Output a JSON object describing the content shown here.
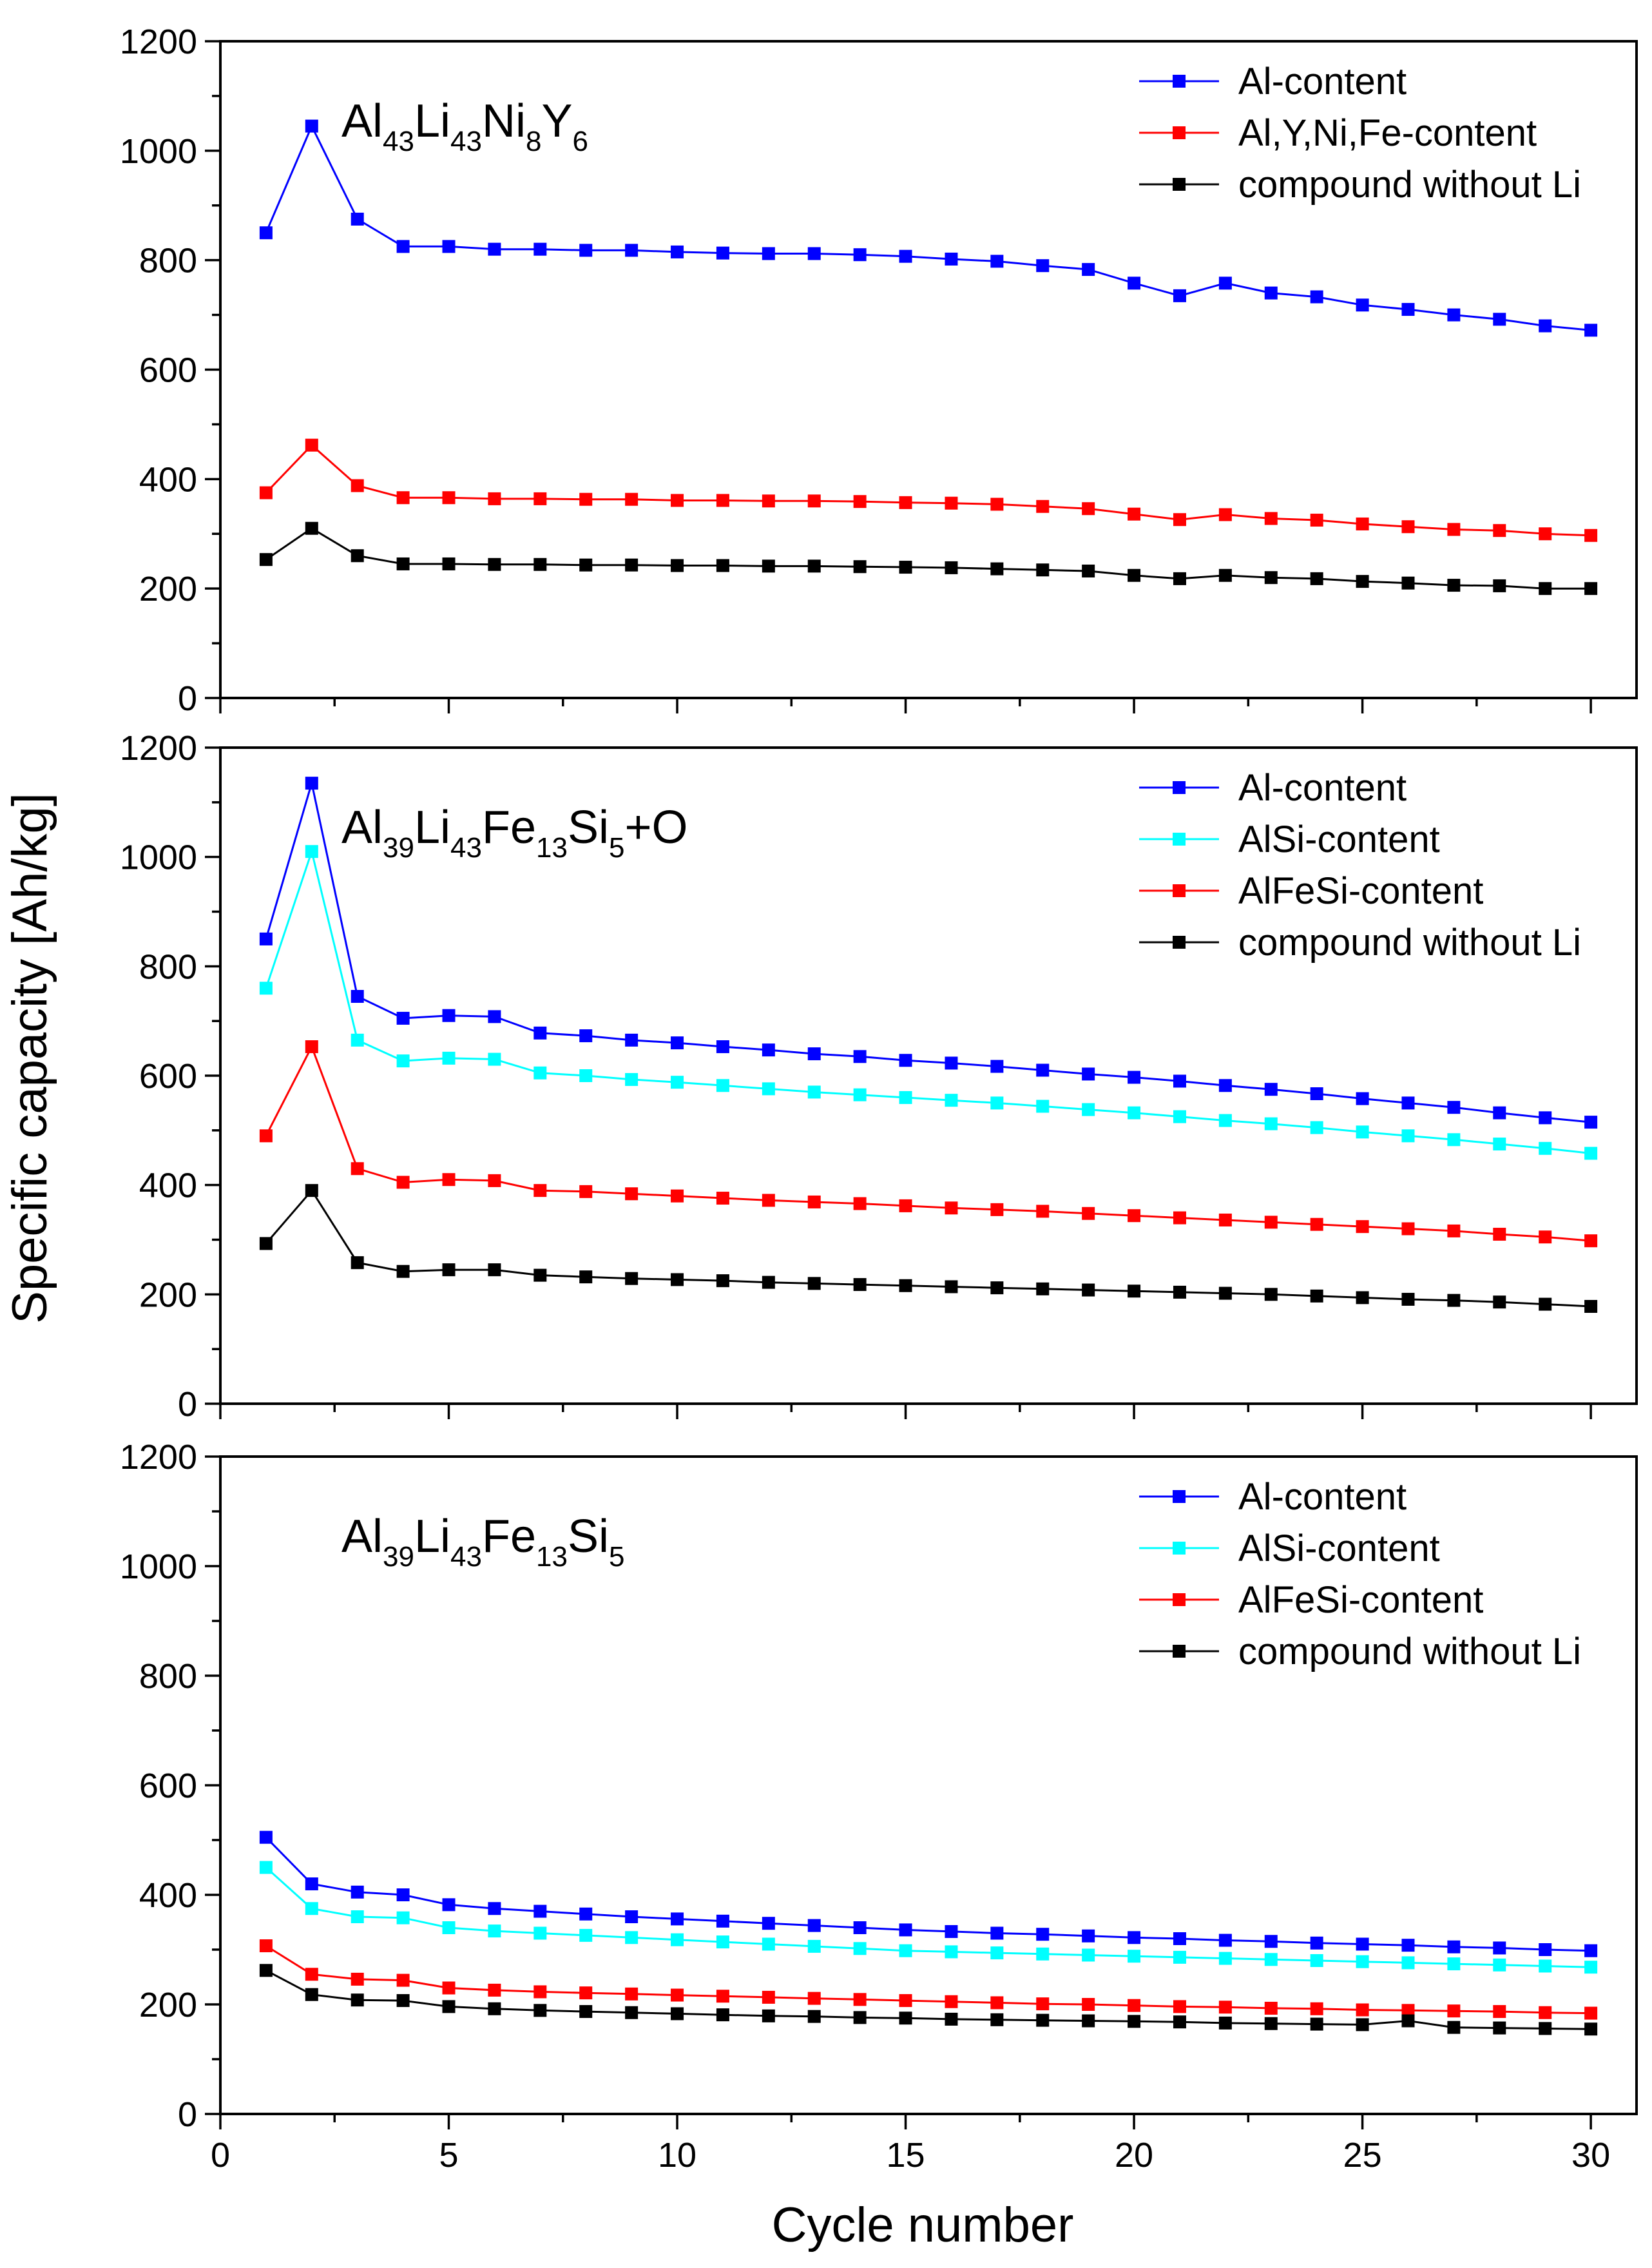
{
  "figure": {
    "ylabel": "Specific capacity [Ah/kg]",
    "xlabel": "Cycle number"
  },
  "colors": {
    "blue": "#0000ff",
    "red": "#ff0000",
    "black": "#000000",
    "cyan": "#00ffff"
  },
  "chart_data": [
    {
      "type": "line",
      "title_parts": [
        {
          "t": "Al",
          "sub": false
        },
        {
          "t": "43",
          "sub": true
        },
        {
          "t": "Li",
          "sub": false
        },
        {
          "t": "43",
          "sub": true
        },
        {
          "t": "Ni",
          "sub": false
        },
        {
          "t": "8",
          "sub": true
        },
        {
          "t": "Y",
          "sub": false
        },
        {
          "t": "6",
          "sub": true
        }
      ],
      "xlabel": "Cycle number",
      "ylabel": "Specific capacity [Ah/kg]",
      "xlim": [
        0,
        31
      ],
      "ylim": [
        0,
        1200
      ],
      "xticks": [
        "0",
        "5",
        "10",
        "15",
        "20",
        "25",
        "30"
      ],
      "yticks": [
        "0",
        "200",
        "400",
        "600",
        "800",
        "1000",
        "1200"
      ],
      "x": [
        1,
        2,
        3,
        4,
        5,
        6,
        7,
        8,
        9,
        10,
        11,
        12,
        13,
        14,
        15,
        16,
        17,
        18,
        19,
        20,
        21,
        22,
        23,
        24,
        25,
        26,
        27,
        28,
        29,
        30
      ],
      "series": [
        {
          "name": "Al-content",
          "color": "#0000ff",
          "values": [
            850,
            1045,
            875,
            825,
            825,
            820,
            820,
            818,
            818,
            815,
            813,
            812,
            812,
            810,
            807,
            802,
            798,
            790,
            783,
            758,
            735,
            758,
            740,
            733,
            718,
            710,
            700,
            692,
            680,
            672
          ]
        },
        {
          "name": "Al,Y,Ni,Fe-content",
          "color": "#ff0000",
          "values": [
            375,
            462,
            388,
            366,
            366,
            364,
            364,
            363,
            363,
            361,
            361,
            360,
            360,
            359,
            357,
            356,
            354,
            350,
            346,
            336,
            326,
            335,
            328,
            325,
            318,
            313,
            308,
            306,
            300,
            297
          ]
        },
        {
          "name": "compound without Li",
          "color": "#000000",
          "values": [
            253,
            310,
            260,
            245,
            245,
            244,
            244,
            243,
            243,
            242,
            242,
            241,
            241,
            240,
            239,
            238,
            236,
            234,
            232,
            224,
            218,
            224,
            220,
            218,
            213,
            210,
            206,
            205,
            200,
            200
          ]
        }
      ]
    },
    {
      "type": "line",
      "title_parts": [
        {
          "t": "Al",
          "sub": false
        },
        {
          "t": "39",
          "sub": true
        },
        {
          "t": "Li",
          "sub": false
        },
        {
          "t": "43",
          "sub": true
        },
        {
          "t": "Fe",
          "sub": false
        },
        {
          "t": "13",
          "sub": true
        },
        {
          "t": "Si",
          "sub": false
        },
        {
          "t": "5",
          "sub": true
        },
        {
          "t": "+O",
          "sub": false
        }
      ],
      "xlabel": "Cycle number",
      "ylabel": "Specific capacity [Ah/kg]",
      "xlim": [
        0,
        31
      ],
      "ylim": [
        0,
        1200
      ],
      "xticks": [
        "0",
        "5",
        "10",
        "15",
        "20",
        "25",
        "30"
      ],
      "yticks": [
        "0",
        "200",
        "400",
        "600",
        "800",
        "1000",
        "1200"
      ],
      "x": [
        1,
        2,
        3,
        4,
        5,
        6,
        7,
        8,
        9,
        10,
        11,
        12,
        13,
        14,
        15,
        16,
        17,
        18,
        19,
        20,
        21,
        22,
        23,
        24,
        25,
        26,
        27,
        28,
        29,
        30
      ],
      "series": [
        {
          "name": "Al-content",
          "color": "#0000ff",
          "values": [
            850,
            1135,
            745,
            705,
            710,
            708,
            678,
            673,
            665,
            660,
            653,
            647,
            640,
            635,
            628,
            623,
            617,
            610,
            603,
            597,
            590,
            582,
            575,
            567,
            558,
            550,
            542,
            532,
            523,
            515
          ]
        },
        {
          "name": "AlSi-content",
          "color": "#00ffff",
          "values": [
            760,
            1010,
            665,
            627,
            632,
            630,
            605,
            600,
            593,
            588,
            582,
            576,
            570,
            565,
            560,
            555,
            550,
            544,
            538,
            532,
            525,
            518,
            512,
            505,
            497,
            490,
            483,
            475,
            467,
            458
          ]
        },
        {
          "name": "AlFeSi-content",
          "color": "#ff0000",
          "values": [
            490,
            653,
            430,
            405,
            410,
            408,
            390,
            388,
            384,
            380,
            376,
            372,
            369,
            366,
            362,
            358,
            355,
            352,
            348,
            344,
            340,
            336,
            332,
            328,
            324,
            320,
            316,
            310,
            305,
            298
          ]
        },
        {
          "name": "compound without Li",
          "color": "#000000",
          "values": [
            293,
            390,
            258,
            242,
            245,
            245,
            235,
            232,
            229,
            227,
            225,
            222,
            220,
            218,
            216,
            214,
            212,
            210,
            208,
            206,
            204,
            202,
            200,
            197,
            194,
            191,
            189,
            186,
            182,
            178
          ]
        }
      ]
    },
    {
      "type": "line",
      "title_parts": [
        {
          "t": "Al",
          "sub": false
        },
        {
          "t": "39",
          "sub": true
        },
        {
          "t": "Li",
          "sub": false
        },
        {
          "t": "43",
          "sub": true
        },
        {
          "t": "Fe",
          "sub": false
        },
        {
          "t": "13",
          "sub": true
        },
        {
          "t": "Si",
          "sub": false
        },
        {
          "t": "5",
          "sub": true
        }
      ],
      "xlabel": "Cycle number",
      "ylabel": "Specific capacity [Ah/kg]",
      "xlim": [
        0,
        31
      ],
      "ylim": [
        0,
        1200
      ],
      "xticks": [
        "0",
        "5",
        "10",
        "15",
        "20",
        "25",
        "30"
      ],
      "yticks": [
        "0",
        "200",
        "400",
        "600",
        "800",
        "1000",
        "1200"
      ],
      "x": [
        1,
        2,
        3,
        4,
        5,
        6,
        7,
        8,
        9,
        10,
        11,
        12,
        13,
        14,
        15,
        16,
        17,
        18,
        19,
        20,
        21,
        22,
        23,
        24,
        25,
        26,
        27,
        28,
        29,
        30
      ],
      "series": [
        {
          "name": "Al-content",
          "color": "#0000ff",
          "values": [
            505,
            420,
            405,
            400,
            382,
            375,
            370,
            365,
            360,
            356,
            352,
            348,
            344,
            340,
            336,
            333,
            330,
            328,
            325,
            322,
            320,
            317,
            315,
            312,
            310,
            308,
            305,
            303,
            300,
            298
          ]
        },
        {
          "name": "AlSi-content",
          "color": "#00ffff",
          "values": [
            450,
            375,
            360,
            358,
            340,
            334,
            330,
            326,
            322,
            318,
            314,
            310,
            306,
            302,
            298,
            296,
            294,
            292,
            290,
            288,
            286,
            284,
            282,
            280,
            278,
            276,
            274,
            272,
            270,
            268
          ]
        },
        {
          "name": "AlFeSi-content",
          "color": "#ff0000",
          "values": [
            307,
            255,
            246,
            244,
            230,
            226,
            223,
            221,
            219,
            217,
            215,
            213,
            211,
            209,
            207,
            205,
            203,
            201,
            200,
            198,
            196,
            195,
            193,
            192,
            190,
            189,
            188,
            187,
            185,
            184
          ]
        },
        {
          "name": "compound without Li",
          "color": "#000000",
          "values": [
            262,
            218,
            208,
            207,
            196,
            192,
            189,
            187,
            185,
            183,
            181,
            179,
            178,
            176,
            175,
            173,
            172,
            171,
            170,
            169,
            168,
            166,
            165,
            164,
            163,
            170,
            158,
            157,
            156,
            155
          ]
        }
      ]
    }
  ]
}
